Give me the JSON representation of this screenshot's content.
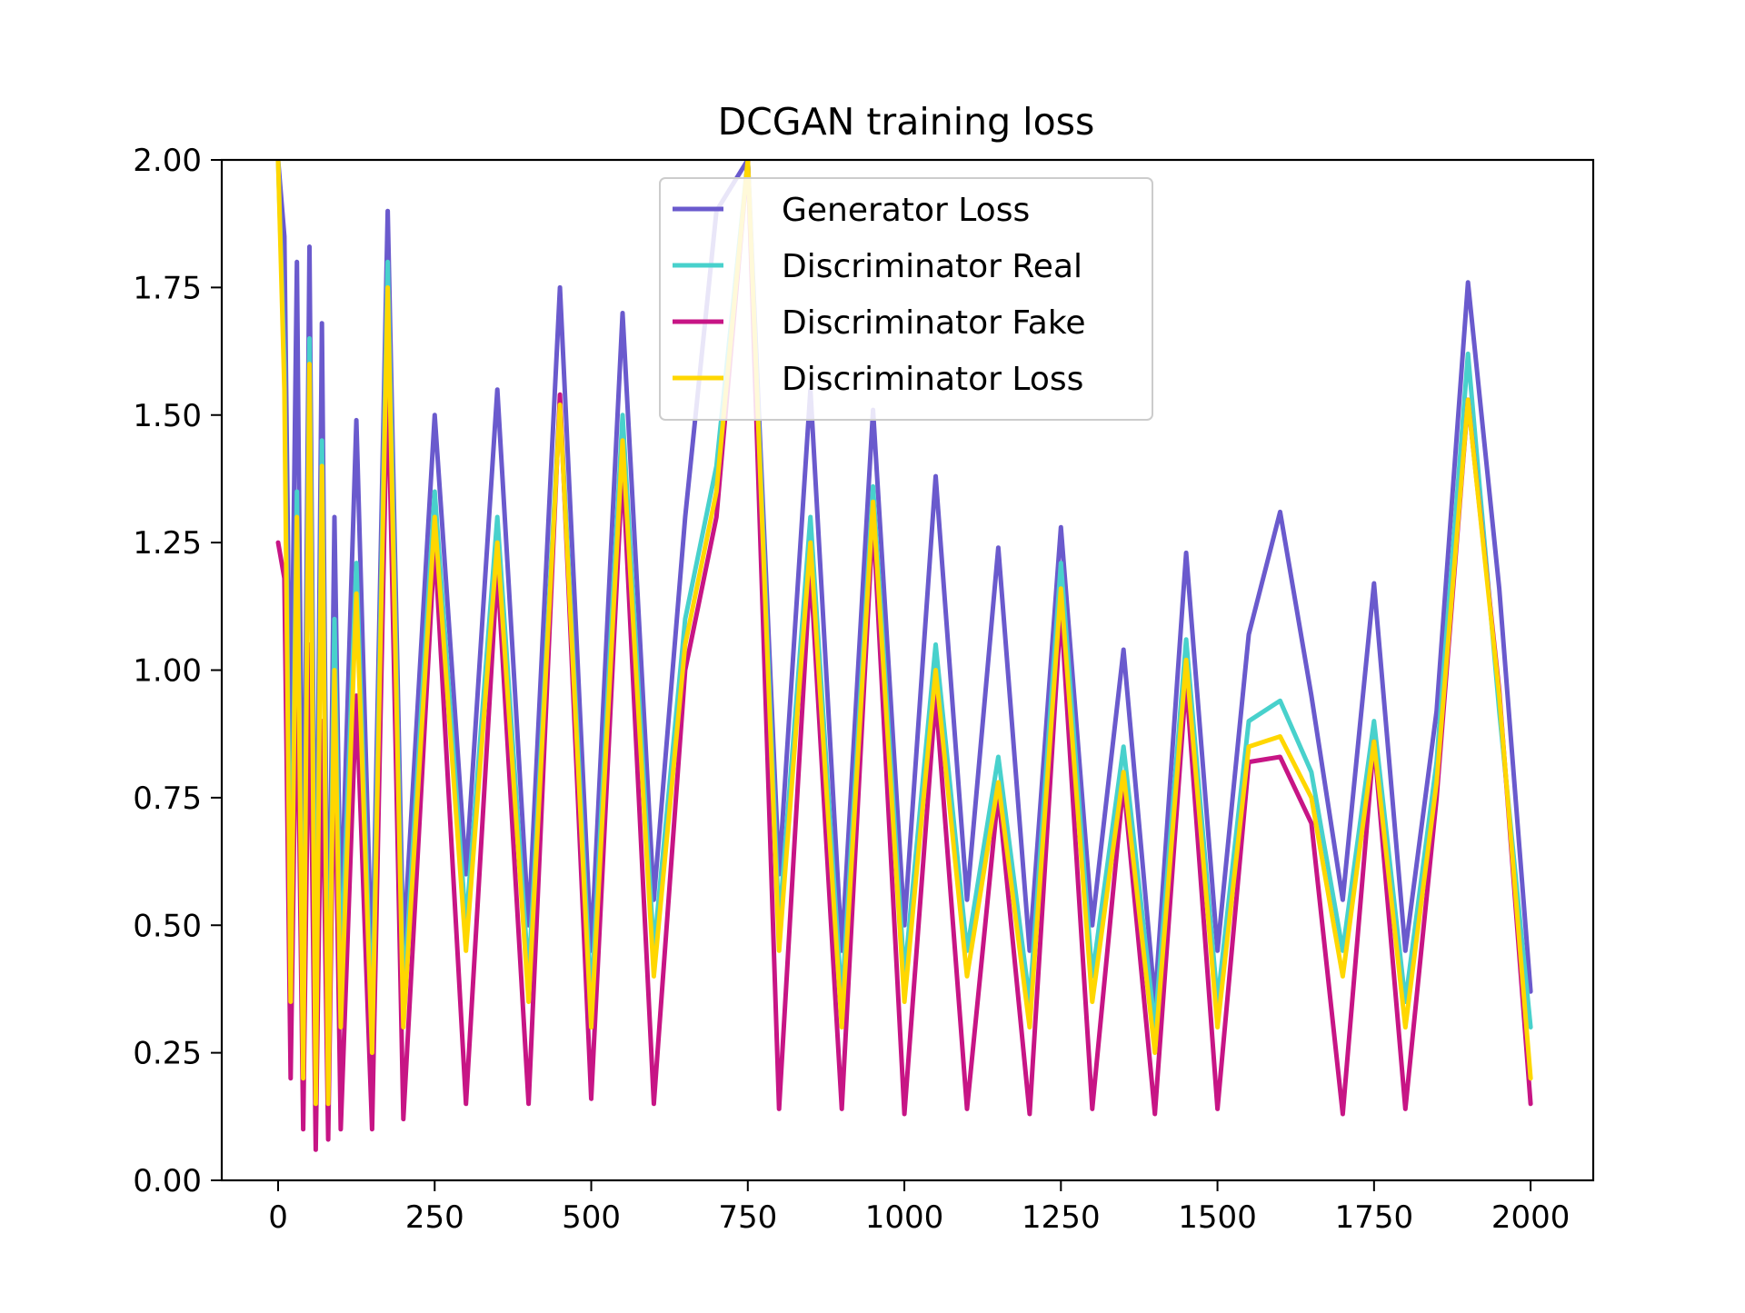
{
  "chart_data": {
    "type": "line",
    "title": "DCGAN training loss",
    "xlabel": "",
    "ylabel": "",
    "xlim": [
      -90,
      2100
    ],
    "ylim": [
      0,
      2
    ],
    "x_ticks": [
      0,
      250,
      500,
      750,
      1000,
      1250,
      1500,
      1750,
      2000
    ],
    "x_tick_labels": [
      "0",
      "250",
      "500",
      "750",
      "1000",
      "1250",
      "1500",
      "1750",
      "2000"
    ],
    "y_ticks": [
      0,
      0.25,
      0.5,
      0.75,
      1.0,
      1.25,
      1.5,
      1.75,
      2.0
    ],
    "y_tick_labels": [
      "0.00",
      "0.25",
      "0.50",
      "0.75",
      "1.00",
      "1.25",
      "1.50",
      "1.75",
      "2.00"
    ],
    "grid": false,
    "legend_position": "top-center",
    "x": [
      0,
      10,
      20,
      30,
      40,
      50,
      60,
      70,
      80,
      90,
      100,
      125,
      150,
      175,
      200,
      250,
      300,
      350,
      400,
      450,
      500,
      550,
      600,
      650,
      700,
      750,
      800,
      850,
      900,
      950,
      1000,
      1050,
      1100,
      1150,
      1200,
      1250,
      1300,
      1350,
      1400,
      1450,
      1500,
      1550,
      1600,
      1650,
      1700,
      1750,
      1800,
      1850,
      1900,
      1950,
      2000
    ],
    "series": [
      {
        "name": "Generator Loss",
        "color": "#6a5acd",
        "values": [
          2.0,
          1.85,
          0.8,
          1.8,
          0.45,
          1.83,
          0.35,
          1.68,
          0.3,
          1.3,
          0.5,
          1.49,
          0.4,
          1.9,
          0.45,
          1.5,
          0.6,
          1.55,
          0.5,
          1.75,
          0.45,
          1.7,
          0.55,
          1.3,
          1.9,
          2.0,
          0.6,
          1.55,
          0.45,
          1.51,
          0.5,
          1.38,
          0.55,
          1.24,
          0.45,
          1.28,
          0.5,
          1.04,
          0.35,
          1.23,
          0.45,
          1.07,
          1.31,
          0.95,
          0.55,
          1.17,
          0.45,
          0.92,
          1.76,
          1.16,
          0.37
        ]
      },
      {
        "name": "Discriminator Real",
        "color": "#48d1cc",
        "values": [
          2.0,
          1.6,
          0.45,
          1.35,
          0.25,
          1.65,
          0.25,
          1.45,
          0.2,
          1.1,
          0.4,
          1.21,
          0.3,
          1.8,
          0.35,
          1.35,
          0.5,
          1.3,
          0.4,
          1.53,
          0.35,
          1.5,
          0.45,
          1.1,
          1.4,
          2.0,
          0.5,
          1.3,
          0.35,
          1.36,
          0.4,
          1.05,
          0.45,
          0.83,
          0.35,
          1.21,
          0.4,
          0.85,
          0.3,
          1.06,
          0.35,
          0.9,
          0.94,
          0.8,
          0.45,
          0.9,
          0.35,
          0.82,
          1.62,
          0.92,
          0.3
        ]
      },
      {
        "name": "Discriminator Fake",
        "color": "#c71585",
        "values": [
          1.25,
          1.18,
          0.2,
          1.05,
          0.1,
          1.05,
          0.06,
          0.9,
          0.08,
          0.9,
          0.1,
          0.95,
          0.1,
          1.6,
          0.12,
          1.25,
          0.15,
          1.2,
          0.15,
          1.54,
          0.16,
          1.4,
          0.15,
          1.0,
          1.3,
          2.0,
          0.14,
          1.2,
          0.14,
          1.3,
          0.13,
          0.95,
          0.14,
          0.76,
          0.13,
          1.12,
          0.14,
          0.78,
          0.13,
          0.98,
          0.14,
          0.82,
          0.83,
          0.7,
          0.13,
          0.86,
          0.14,
          0.75,
          1.53,
          0.96,
          0.15
        ]
      },
      {
        "name": "Discriminator Loss",
        "color": "#ffd700",
        "values": [
          2.0,
          1.55,
          0.35,
          1.3,
          0.2,
          1.6,
          0.15,
          1.4,
          0.15,
          1.0,
          0.3,
          1.15,
          0.25,
          1.75,
          0.3,
          1.3,
          0.45,
          1.25,
          0.35,
          1.52,
          0.3,
          1.45,
          0.4,
          1.05,
          1.35,
          2.0,
          0.45,
          1.25,
          0.3,
          1.33,
          0.35,
          1.0,
          0.4,
          0.78,
          0.3,
          1.16,
          0.35,
          0.8,
          0.25,
          1.02,
          0.3,
          0.85,
          0.87,
          0.75,
          0.4,
          0.86,
          0.3,
          0.78,
          1.53,
          0.95,
          0.2
        ]
      }
    ]
  }
}
